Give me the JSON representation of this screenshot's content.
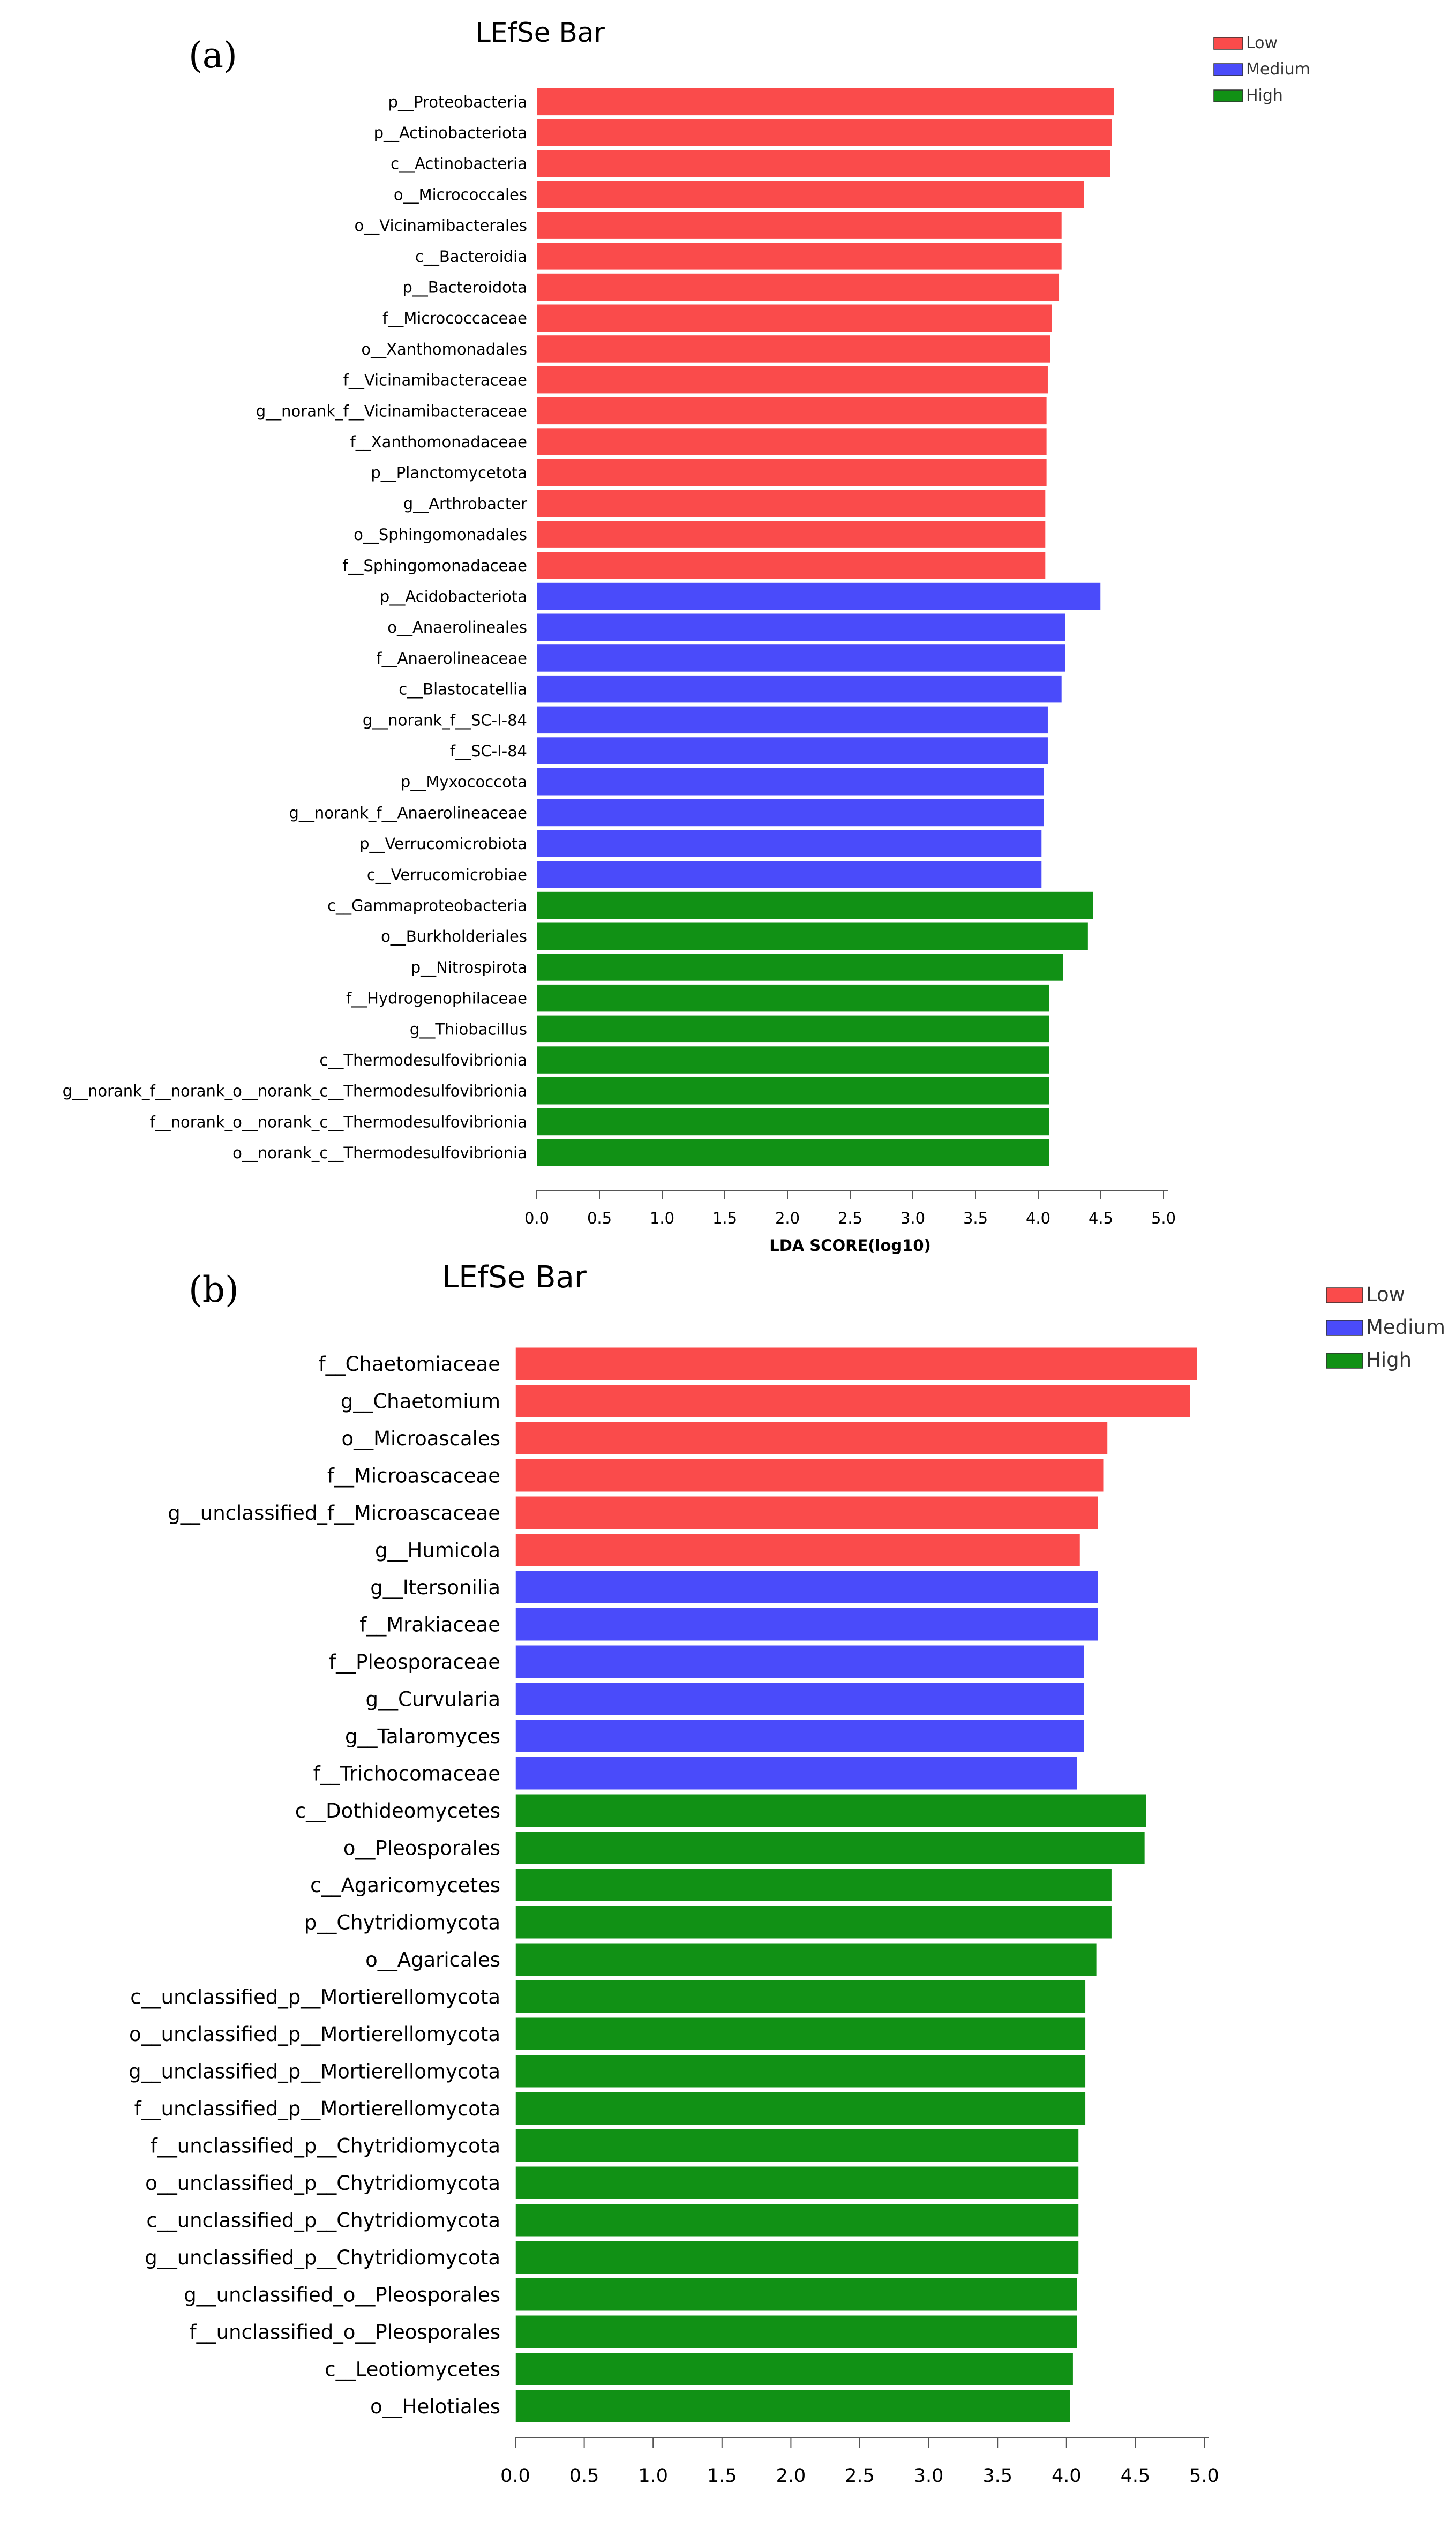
{
  "chart_data": [
    {
      "panel_label": "(a)",
      "type": "bar",
      "orientation": "horizontal",
      "title": "LEfSe Bar",
      "xlabel": "LDA SCORE(log10)",
      "xlim": [
        0,
        5.0
      ],
      "xticks": [
        "0.0",
        "0.5",
        "1.0",
        "1.5",
        "2.0",
        "2.5",
        "3.0",
        "3.5",
        "4.0",
        "4.5",
        "5.0"
      ],
      "legend": {
        "placement": "top-right",
        "items": [
          {
            "name": "Low",
            "color": "#fa4b4b"
          },
          {
            "name": "Medium",
            "color": "#4a4bfa"
          },
          {
            "name": "High",
            "color": "#119115"
          }
        ]
      },
      "series": [
        {
          "name": "Low",
          "color": "#fa4b4b",
          "categories": [
            "p__Proteobacteria",
            "p__Actinobacteriota",
            "c__Actinobacteria",
            "o__Micrococcales",
            "o__Vicinamibacterales",
            "c__Bacteroidia",
            "p__Bacteroidota",
            "f__Micrococcaceae",
            "o__Xanthomonadales",
            "f__Vicinamibacteraceae",
            "g__norank_f__Vicinamibacteraceae",
            "f__Xanthomonadaceae",
            "p__Planctomycetota",
            "g__Arthrobacter",
            "o__Sphingomonadales",
            "f__Sphingomonadaceae"
          ],
          "values": [
            4.61,
            4.59,
            4.58,
            4.37,
            4.19,
            4.19,
            4.17,
            4.11,
            4.1,
            4.08,
            4.07,
            4.07,
            4.07,
            4.06,
            4.06,
            4.06
          ]
        },
        {
          "name": "Medium",
          "color": "#4a4bfa",
          "categories": [
            "p__Acidobacteriota",
            "o__Anaerolineales",
            "f__Anaerolineaceae",
            "c__Blastocatellia",
            "g__norank_f__SC-I-84",
            "f__SC-I-84",
            "p__Myxococcota",
            "g__norank_f__Anaerolineaceae",
            "p__Verrucomicrobiota",
            "c__Verrucomicrobiae"
          ],
          "values": [
            4.5,
            4.22,
            4.22,
            4.19,
            4.08,
            4.08,
            4.05,
            4.05,
            4.03,
            4.03
          ]
        },
        {
          "name": "High",
          "color": "#119115",
          "categories": [
            "c__Gammaproteobacteria",
            "o__Burkholderiales",
            "p__Nitrospirota",
            "f__Hydrogenophilaceae",
            "g__Thiobacillus",
            "c__Thermodesulfovibrionia",
            "g__norank_f__norank_o__norank_c__Thermodesulfovibrionia",
            "f__norank_o__norank_c__Thermodesulfovibrionia",
            "o__norank_c__Thermodesulfovibrionia"
          ],
          "values": [
            4.44,
            4.4,
            4.2,
            4.09,
            4.09,
            4.09,
            4.09,
            4.09,
            4.09
          ]
        }
      ]
    },
    {
      "panel_label": "(b)",
      "type": "bar",
      "orientation": "horizontal",
      "title": "LEfSe Bar",
      "xlabel": "",
      "xlim": [
        0,
        5.0
      ],
      "xticks": [
        "0.0",
        "0.5",
        "1.0",
        "1.5",
        "2.0",
        "2.5",
        "3.0",
        "3.5",
        "4.0",
        "4.5",
        "5.0"
      ],
      "legend": {
        "placement": "top-right",
        "items": [
          {
            "name": "Low",
            "color": "#fa4b4b"
          },
          {
            "name": "Medium",
            "color": "#4a4bfa"
          },
          {
            "name": "High",
            "color": "#119115"
          }
        ]
      },
      "series": [
        {
          "name": "Low",
          "color": "#fa4b4b",
          "categories": [
            "f__Chaetomiaceae",
            "g__Chaetomium",
            "o__Microascales",
            "f__Microascaceae",
            "g__unclassified_f__Microascaceae",
            "g__Humicola"
          ],
          "values": [
            4.95,
            4.9,
            4.3,
            4.27,
            4.23,
            4.1
          ]
        },
        {
          "name": "Medium",
          "color": "#4a4bfa",
          "categories": [
            "g__Itersonilia",
            "f__Mrakiaceae",
            "f__Pleosporaceae",
            "g__Curvularia",
            "g__Talaromyces",
            "f__Trichocomaceae"
          ],
          "values": [
            4.23,
            4.23,
            4.13,
            4.13,
            4.13,
            4.08
          ]
        },
        {
          "name": "High",
          "color": "#119115",
          "categories": [
            "c__Dothideomycetes",
            "o__Pleosporales",
            "c__Agaricomycetes",
            "p__Chytridiomycota",
            "o__Agaricales",
            "c__unclassified_p__Mortierellomycota",
            "o__unclassified_p__Mortierellomycota",
            "g__unclassified_p__Mortierellomycota",
            "f__unclassified_p__Mortierellomycota",
            "f__unclassified_p__Chytridiomycota",
            "o__unclassified_p__Chytridiomycota",
            "c__unclassified_p__Chytridiomycota",
            "g__unclassified_p__Chytridiomycota",
            "g__unclassified_o__Pleosporales",
            "f__unclassified_o__Pleosporales",
            "c__Leotiomycetes",
            "o__Helotiales"
          ],
          "values": [
            4.58,
            4.57,
            4.33,
            4.33,
            4.22,
            4.14,
            4.14,
            4.14,
            4.14,
            4.09,
            4.09,
            4.09,
            4.09,
            4.08,
            4.08,
            4.05,
            4.03
          ]
        }
      ]
    }
  ]
}
